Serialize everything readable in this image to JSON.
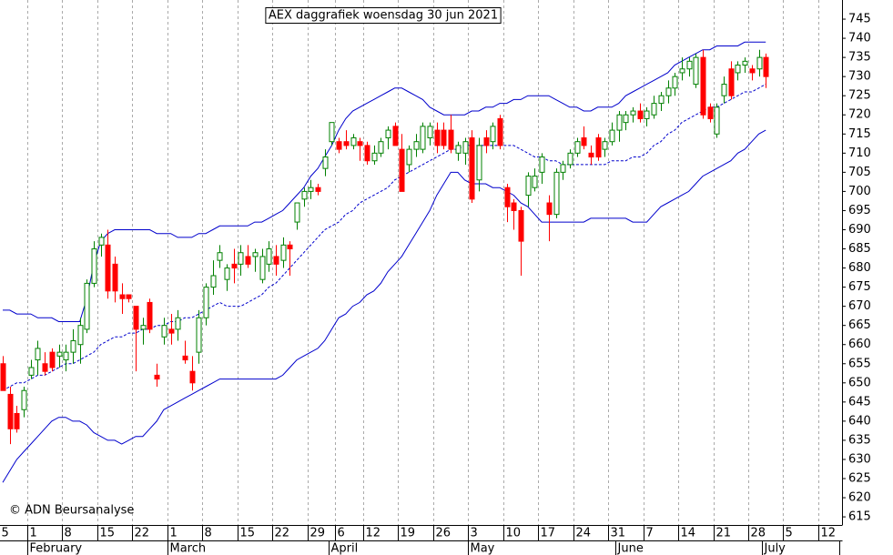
{
  "chart_data": {
    "type": "candlestick",
    "title": "AEX daggrafiek woensdag 30 jun 2021",
    "copyright": "© ADN Beursanalyse",
    "categories": [
      "5",
      null,
      null,
      null,
      "1",
      null,
      null,
      null,
      null,
      "8",
      null,
      null,
      null,
      null,
      "15",
      null,
      null,
      null,
      null,
      "22",
      null,
      null,
      null,
      null,
      "1",
      null,
      null,
      null,
      null,
      "8",
      null,
      null,
      null,
      null,
      "15",
      null,
      null,
      null,
      null,
      "22",
      null,
      null,
      null,
      null,
      "29",
      null,
      null,
      null,
      "6",
      null,
      null,
      null,
      "12",
      null,
      null,
      null,
      null,
      "19",
      null,
      null,
      null,
      null,
      "26",
      null,
      null,
      null,
      null,
      "3",
      null,
      null,
      null,
      null,
      "10",
      null,
      null,
      null,
      null,
      "17",
      null,
      null,
      null,
      null,
      "24",
      null,
      null,
      null,
      null,
      "31",
      null,
      null,
      null,
      null,
      "7",
      null,
      null,
      null,
      null,
      "14",
      null,
      null,
      null,
      null,
      "21",
      null,
      null,
      null,
      null,
      "28",
      null,
      null,
      null,
      null,
      "5",
      null,
      null,
      null,
      null,
      "12",
      null,
      null,
      null
    ],
    "month_labels": [
      null,
      null,
      null,
      null,
      "February",
      null,
      null,
      null,
      null,
      null,
      null,
      null,
      null,
      null,
      null,
      null,
      null,
      null,
      null,
      null,
      null,
      null,
      null,
      null,
      "March",
      null,
      null,
      null,
      null,
      null,
      null,
      null,
      null,
      null,
      null,
      null,
      null,
      null,
      null,
      null,
      null,
      null,
      null,
      null,
      null,
      null,
      null,
      "April",
      null,
      null,
      null,
      null,
      null,
      null,
      null,
      null,
      null,
      null,
      null,
      null,
      null,
      null,
      null,
      null,
      null,
      null,
      null,
      "May",
      null,
      null,
      null,
      null,
      null,
      null,
      null,
      null,
      null,
      null,
      null,
      null,
      null,
      null,
      null,
      null,
      null,
      null,
      null,
      null,
      "June",
      null,
      null,
      null,
      null,
      null,
      null,
      null,
      null,
      null,
      null,
      null,
      null,
      null,
      null,
      null,
      null,
      null,
      null,
      null,
      null,
      "July",
      null,
      null,
      null,
      null,
      null,
      null,
      null,
      null,
      null,
      null
    ],
    "open": [
      655,
      647,
      642,
      643,
      652,
      656,
      655,
      658,
      657,
      656,
      658,
      660,
      664,
      676,
      686,
      686,
      681,
      673,
      673,
      670,
      664,
      671,
      652,
      662,
      664,
      664,
      657,
      653,
      658,
      667,
      675,
      682,
      677,
      681,
      681,
      683,
      683,
      677,
      681,
      683,
      682,
      686,
      692,
      698,
      700,
      701,
      706,
      713,
      713,
      713,
      712,
      713,
      712,
      708,
      710,
      714,
      717,
      711,
      707,
      711,
      711,
      714,
      716,
      716,
      716,
      710,
      710,
      714,
      703,
      714,
      713,
      719,
      701,
      697,
      695,
      699,
      701,
      705,
      697,
      694,
      705,
      707,
      710,
      714,
      710,
      714,
      711,
      713,
      716,
      718,
      720,
      721,
      719,
      720,
      723,
      725,
      727,
      731,
      732,
      728,
      735,
      722,
      715,
      725,
      732,
      731,
      733,
      732,
      732,
      735,
      null,
      null,
      null,
      null,
      null,
      null,
      null,
      null,
      null,
      null,
      null
    ],
    "high": [
      657,
      649,
      644,
      649,
      656,
      661,
      658,
      659,
      660,
      660,
      664,
      667,
      677,
      687,
      689,
      690,
      683,
      676,
      673,
      670,
      667,
      672,
      655,
      667,
      668,
      669,
      661,
      657,
      669,
      676,
      682,
      686,
      681,
      685,
      686,
      686,
      685,
      685,
      687,
      686,
      688,
      687,
      697,
      701,
      703,
      702,
      711,
      718,
      714,
      716,
      715,
      714,
      713,
      712,
      714,
      717,
      718,
      715,
      712,
      715,
      718,
      718,
      718,
      718,
      720,
      713,
      714,
      716,
      714,
      716,
      718,
      720,
      702,
      698,
      696,
      705,
      706,
      710,
      699,
      706,
      708,
      711,
      714,
      717,
      712,
      715,
      714,
      718,
      721,
      721,
      722,
      723,
      722,
      725,
      726,
      729,
      731,
      735,
      735,
      736,
      737,
      723,
      723,
      730,
      734,
      734,
      735,
      733,
      737,
      736,
      null,
      null,
      null,
      null,
      null,
      null,
      null,
      null,
      null,
      null,
      null
    ],
    "low": [
      648,
      634,
      637,
      641,
      651,
      652,
      652,
      653,
      654,
      653,
      655,
      655,
      663,
      675,
      683,
      672,
      671,
      668,
      671,
      653,
      660,
      663,
      649,
      660,
      660,
      661,
      655,
      648,
      655,
      665,
      673,
      680,
      674,
      676,
      678,
      680,
      679,
      676,
      679,
      678,
      680,
      678,
      690,
      696,
      698,
      699,
      704,
      712,
      710,
      711,
      711,
      708,
      707,
      707,
      709,
      711,
      712,
      700,
      705,
      709,
      710,
      712,
      710,
      711,
      710,
      708,
      707,
      697,
      700,
      710,
      711,
      711,
      692,
      690,
      678,
      696,
      700,
      702,
      687,
      693,
      703,
      706,
      709,
      711,
      707,
      708,
      709,
      712,
      713,
      716,
      718,
      718,
      717,
      719,
      721,
      723,
      725,
      729,
      730,
      727,
      719,
      718,
      714,
      723,
      724,
      729,
      731,
      729,
      730,
      727,
      null,
      null,
      null,
      null,
      null,
      null,
      null,
      null,
      null,
      null,
      null
    ],
    "close": [
      648,
      638,
      638,
      648,
      654,
      659,
      653,
      654,
      658,
      658,
      661,
      665,
      676,
      685,
      688,
      674,
      674,
      672,
      672,
      664,
      665,
      664,
      651,
      665,
      663,
      667,
      656,
      650,
      667,
      675,
      678,
      684,
      680,
      680,
      684,
      681,
      684,
      683,
      685,
      681,
      686,
      685,
      697,
      700,
      701,
      700,
      709,
      718,
      711,
      712,
      714,
      712,
      708,
      710,
      713,
      716,
      712,
      700,
      711,
      713,
      717,
      717,
      712,
      712,
      711,
      712,
      713,
      698,
      712,
      712,
      717,
      712,
      696,
      695,
      687,
      704,
      704,
      709,
      694,
      705,
      707,
      710,
      713,
      712,
      709,
      709,
      713,
      716,
      720,
      720,
      721,
      719,
      721,
      723,
      725,
      727,
      730,
      732,
      734,
      735,
      720,
      719,
      722,
      728,
      725,
      733,
      734,
      731,
      735,
      730,
      null,
      null,
      null,
      null,
      null,
      null,
      null,
      null,
      null,
      null,
      null
    ],
    "up_color": "#008000",
    "down_color": "#ff0000",
    "bands": [
      {
        "color": "#0000cc",
        "dashed": false,
        "values": [
          669,
          669,
          668,
          668,
          668,
          667,
          667,
          667,
          666,
          666,
          666,
          666,
          672,
          681,
          687,
          689,
          690,
          690,
          690,
          690,
          690,
          690,
          689,
          689,
          689,
          688,
          688,
          688,
          689,
          689,
          690,
          691,
          691,
          691,
          691,
          691,
          692,
          692,
          693,
          694,
          695,
          697,
          699,
          701,
          704,
          706,
          709,
          712,
          716,
          719,
          721,
          722,
          723,
          724,
          725,
          726,
          727,
          727,
          726,
          725,
          724,
          722,
          721,
          720,
          720,
          720,
          720,
          721,
          721,
          722,
          722,
          723,
          723,
          724,
          724,
          725,
          725,
          725,
          725,
          724,
          723,
          722,
          722,
          721,
          721,
          722,
          722,
          722,
          723,
          725,
          726,
          727,
          728,
          729,
          730,
          731,
          733,
          734,
          735,
          736,
          737,
          737,
          738,
          738,
          738,
          738,
          739,
          739,
          739,
          739,
          null,
          null,
          null,
          null,
          null,
          null,
          null,
          null,
          null,
          null,
          null
        ]
      },
      {
        "color": "#0000cc",
        "dashed": true,
        "values": [
          648,
          649,
          650,
          650,
          651,
          652,
          652,
          653,
          654,
          655,
          655,
          656,
          657,
          658,
          660,
          661,
          662,
          662,
          663,
          663,
          664,
          664,
          665,
          665,
          666,
          666,
          667,
          667,
          668,
          669,
          670,
          671,
          670,
          670,
          670,
          671,
          672,
          673,
          675,
          676,
          678,
          680,
          682,
          684,
          686,
          688,
          690,
          691,
          692,
          694,
          695,
          697,
          698,
          699,
          700,
          701,
          703,
          704,
          705,
          706,
          707,
          708,
          709,
          710,
          711,
          711,
          712,
          712,
          712,
          712,
          712,
          712,
          712,
          712,
          711,
          710,
          709,
          709,
          708,
          708,
          707,
          707,
          707,
          707,
          707,
          707,
          707,
          708,
          708,
          708,
          709,
          709,
          710,
          712,
          713,
          715,
          716,
          718,
          719,
          720,
          721,
          722,
          722,
          723,
          724,
          725,
          726,
          726,
          727,
          728,
          null,
          null,
          null,
          null,
          null,
          null,
          null,
          null,
          null,
          null,
          null
        ]
      },
      {
        "color": "#0000cc",
        "dashed": false,
        "values": [
          624,
          627,
          630,
          632,
          634,
          636,
          638,
          640,
          641,
          641,
          640,
          640,
          639,
          637,
          636,
          635,
          635,
          634,
          635,
          636,
          636,
          638,
          640,
          643,
          644,
          645,
          646,
          647,
          648,
          649,
          650,
          651,
          651,
          651,
          651,
          651,
          651,
          651,
          651,
          651,
          652,
          654,
          656,
          657,
          658,
          659,
          661,
          664,
          667,
          668,
          670,
          671,
          673,
          674,
          676,
          679,
          681,
          683,
          686,
          689,
          692,
          695,
          699,
          702,
          705,
          705,
          703,
          702,
          702,
          702,
          701,
          701,
          700,
          699,
          697,
          696,
          694,
          692,
          692,
          692,
          692,
          692,
          692,
          692,
          693,
          693,
          693,
          693,
          693,
          693,
          692,
          692,
          692,
          694,
          696,
          697,
          698,
          699,
          700,
          702,
          704,
          705,
          706,
          707,
          708,
          710,
          711,
          713,
          715,
          716,
          null,
          null,
          null,
          null,
          null,
          null,
          null,
          null,
          null,
          null,
          null
        ]
      }
    ],
    "ylim": [
      613,
      750
    ],
    "yticks": [
      615,
      620,
      625,
      630,
      635,
      640,
      645,
      650,
      655,
      660,
      665,
      670,
      675,
      680,
      685,
      690,
      695,
      700,
      705,
      710,
      715,
      720,
      725,
      730,
      735,
      740,
      745
    ],
    "grid": "x"
  }
}
